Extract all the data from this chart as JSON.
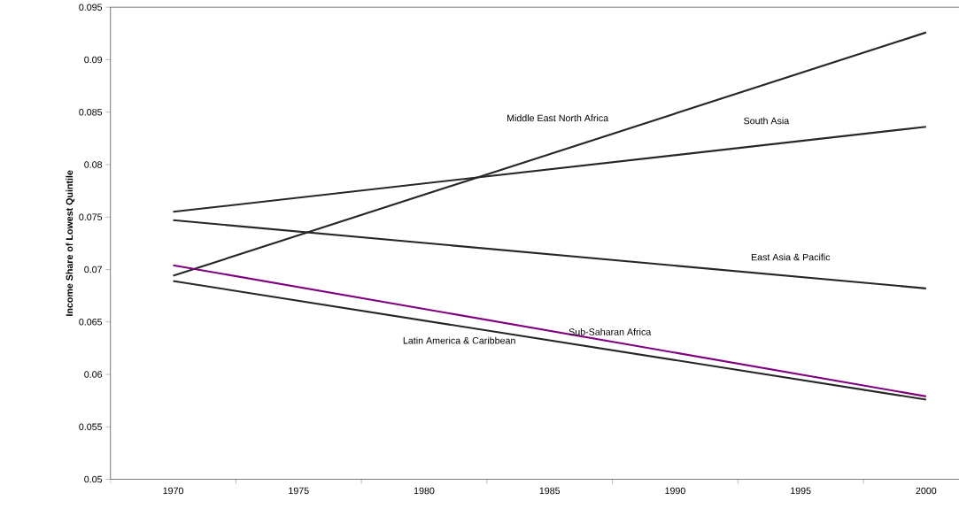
{
  "chart_data": {
    "type": "line",
    "ylabel": "Income Share of Lowest Quintile",
    "categories": [
      "1970",
      "1975",
      "1980",
      "1985",
      "1990",
      "1995",
      "2000"
    ],
    "series": [
      {
        "name": "Middle East North Africa",
        "color": "#262626",
        "values": [
          0.0694,
          null,
          null,
          null,
          null,
          null,
          0.0926
        ]
      },
      {
        "name": "South Asia",
        "color": "#262626",
        "values": [
          0.0755,
          null,
          null,
          null,
          null,
          null,
          0.0836
        ]
      },
      {
        "name": "East Asia & Pacific",
        "color": "#262626",
        "values": [
          0.0747,
          null,
          null,
          null,
          null,
          null,
          0.0682
        ]
      },
      {
        "name": "Sub-Saharan Africa",
        "color": "#800080",
        "values": [
          0.0704,
          null,
          null,
          null,
          null,
          null,
          0.0579
        ]
      },
      {
        "name": "Latin America & Caribbean",
        "color": "#262626",
        "values": [
          0.0689,
          null,
          null,
          null,
          null,
          null,
          0.0576
        ]
      }
    ],
    "ylim": [
      0.05,
      0.095
    ],
    "yticks": [
      0.05,
      0.055,
      0.06,
      0.065,
      0.07,
      0.075,
      0.08,
      0.085,
      0.09,
      0.095
    ],
    "grid": false,
    "marker": "none",
    "line_style": "solid"
  }
}
